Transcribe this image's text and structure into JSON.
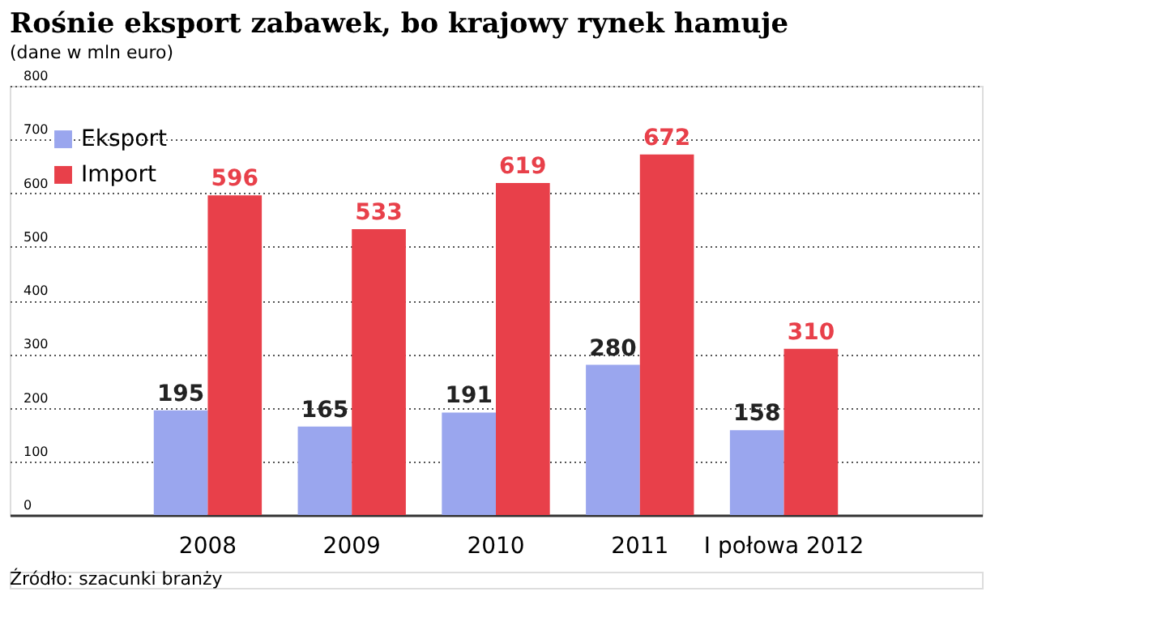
{
  "chart_data": {
    "type": "bar",
    "title": "Rośnie eksport zabawek, bo krajowy rynek hamuje",
    "subtitle": "(dane w mln euro)",
    "categories": [
      "2008",
      "2009",
      "2010",
      "2011",
      "I połowa 2012"
    ],
    "series": [
      {
        "name": "Eksport",
        "color": "#9aa6ee",
        "values": [
          195,
          165,
          191,
          280,
          158
        ]
      },
      {
        "name": "Import",
        "color": "#e8404a",
        "values": [
          596,
          533,
          619,
          672,
          310
        ]
      }
    ],
    "ylim": [
      0,
      800
    ],
    "yticks": [
      0,
      100,
      200,
      300,
      400,
      500,
      600,
      700,
      800
    ],
    "grid": "y",
    "legend": "top left",
    "data_labels": true,
    "annotations": [
      "Źródło: szacunki branży"
    ]
  }
}
